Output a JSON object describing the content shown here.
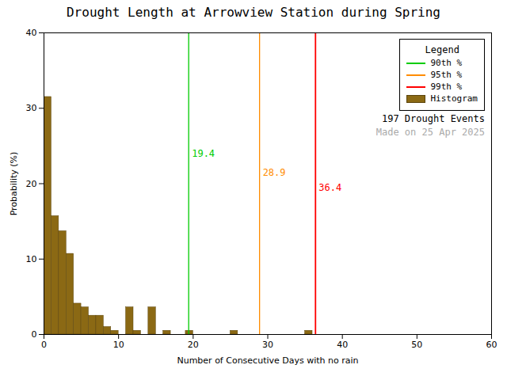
{
  "chart_data": {
    "type": "histogram",
    "title": "Drought Length at Arrowview Station during Spring",
    "xlabel": "Number of Consecutive Days with no rain",
    "ylabel": "Probability (%)",
    "xlim": [
      0,
      60
    ],
    "ylim": [
      0,
      40
    ],
    "xticks": [
      0,
      10,
      20,
      30,
      40,
      50,
      60
    ],
    "yticks": [
      0,
      10,
      20,
      30,
      40
    ],
    "grid": false,
    "legend": "upper right",
    "legend_title": "Legend",
    "bins": [
      0,
      1,
      2,
      3,
      4,
      5,
      6,
      7,
      8,
      9,
      10,
      11,
      12,
      13,
      14,
      15,
      16,
      17,
      18,
      19,
      20,
      21,
      22,
      23,
      24,
      25,
      26,
      27,
      28,
      29,
      30,
      31,
      32,
      33,
      34,
      35,
      36,
      37,
      38,
      39,
      40,
      41,
      42,
      43,
      44,
      45,
      46,
      47,
      48,
      49,
      50,
      51,
      52,
      53,
      54,
      55,
      56,
      57,
      58,
      59,
      60
    ],
    "series": [
      {
        "name": "90th %",
        "type": "rule",
        "color": "#00CC00",
        "x": 19.4,
        "data_labels": true
      },
      {
        "name": "95th %",
        "type": "rule",
        "color": "#FF8C00",
        "x": 28.9,
        "data_labels": true
      },
      {
        "name": "99th %",
        "type": "rule",
        "color": "#FF0000",
        "x": 36.4,
        "data_labels": true
      },
      {
        "name": "Histogram",
        "type": "bar",
        "color": "#8B6914",
        "values": [
          31.5,
          15.7,
          13.7,
          10.7,
          4.1,
          3.6,
          2.5,
          2.5,
          1.0,
          0.5,
          0.0,
          3.6,
          0.5,
          0.0,
          3.6,
          0.0,
          0.5,
          0.0,
          0.0,
          0.5,
          0.0,
          0.0,
          0.0,
          0.0,
          0.0,
          0.5,
          0.0,
          0.0,
          0.0,
          0.0,
          0.0,
          0.0,
          0.0,
          0.0,
          0.0,
          0.5,
          0.0,
          0.0,
          0.0,
          0.0,
          0.0,
          0.0,
          0.0,
          0.0,
          0.0,
          0.0,
          0.0,
          0.0,
          0.0,
          0.0,
          0.0,
          0.0,
          0.0,
          0.0,
          0.0,
          0.0,
          0.0,
          0.0,
          0.0,
          0.0
        ]
      }
    ],
    "annotations": [
      {
        "text": "197 Drought Events",
        "color": "#000000"
      },
      {
        "text": "Made on 25 Apr 2025",
        "color": "#AAAAAA"
      }
    ]
  }
}
